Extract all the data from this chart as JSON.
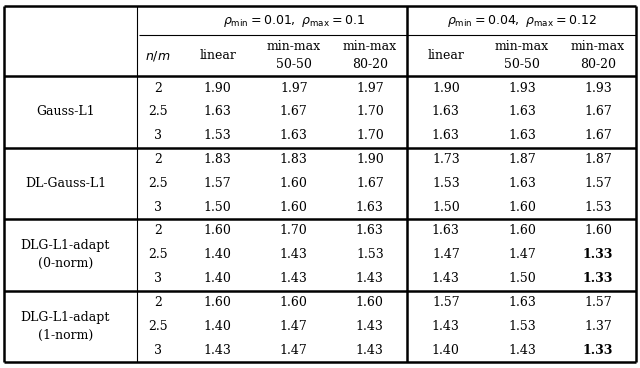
{
  "row_groups": [
    {
      "name": "Gauss-L1",
      "name2": "",
      "rows": [
        {
          "nm": "2",
          "v": [
            "1.90",
            "1.97",
            "1.97",
            "1.90",
            "1.93",
            "1.93"
          ],
          "bold": [
            false,
            false,
            false,
            false,
            false,
            false
          ]
        },
        {
          "nm": "2.5",
          "v": [
            "1.63",
            "1.67",
            "1.70",
            "1.63",
            "1.63",
            "1.67"
          ],
          "bold": [
            false,
            false,
            false,
            false,
            false,
            false
          ]
        },
        {
          "nm": "3",
          "v": [
            "1.53",
            "1.63",
            "1.70",
            "1.63",
            "1.63",
            "1.67"
          ],
          "bold": [
            false,
            false,
            false,
            false,
            false,
            false
          ]
        }
      ]
    },
    {
      "name": "DL-Gauss-L1",
      "name2": "",
      "rows": [
        {
          "nm": "2",
          "v": [
            "1.83",
            "1.83",
            "1.90",
            "1.73",
            "1.87",
            "1.87"
          ],
          "bold": [
            false,
            false,
            false,
            false,
            false,
            false
          ]
        },
        {
          "nm": "2.5",
          "v": [
            "1.57",
            "1.60",
            "1.67",
            "1.53",
            "1.63",
            "1.57"
          ],
          "bold": [
            false,
            false,
            false,
            false,
            false,
            false
          ]
        },
        {
          "nm": "3",
          "v": [
            "1.50",
            "1.60",
            "1.63",
            "1.50",
            "1.60",
            "1.53"
          ],
          "bold": [
            false,
            false,
            false,
            false,
            false,
            false
          ]
        }
      ]
    },
    {
      "name": "DLG-L1-adapt",
      "name2": "(0-norm)",
      "rows": [
        {
          "nm": "2",
          "v": [
            "1.60",
            "1.70",
            "1.63",
            "1.63",
            "1.60",
            "1.60"
          ],
          "bold": [
            false,
            false,
            false,
            false,
            false,
            false
          ]
        },
        {
          "nm": "2.5",
          "v": [
            "1.40",
            "1.43",
            "1.53",
            "1.47",
            "1.47",
            "1.33"
          ],
          "bold": [
            false,
            false,
            false,
            false,
            false,
            true
          ]
        },
        {
          "nm": "3",
          "v": [
            "1.40",
            "1.43",
            "1.43",
            "1.43",
            "1.50",
            "1.33"
          ],
          "bold": [
            false,
            false,
            false,
            false,
            false,
            true
          ]
        }
      ]
    },
    {
      "name": "DLG-L1-adapt",
      "name2": "(1-norm)",
      "rows": [
        {
          "nm": "2",
          "v": [
            "1.60",
            "1.60",
            "1.60",
            "1.57",
            "1.63",
            "1.57"
          ],
          "bold": [
            false,
            false,
            false,
            false,
            false,
            false
          ]
        },
        {
          "nm": "2.5",
          "v": [
            "1.40",
            "1.47",
            "1.43",
            "1.43",
            "1.53",
            "1.37"
          ],
          "bold": [
            false,
            false,
            false,
            false,
            false,
            false
          ]
        },
        {
          "nm": "3",
          "v": [
            "1.43",
            "1.47",
            "1.43",
            "1.40",
            "1.43",
            "1.33"
          ],
          "bold": [
            false,
            false,
            false,
            false,
            false,
            true
          ]
        }
      ]
    }
  ],
  "figsize": [
    6.4,
    3.68
  ],
  "dpi": 100,
  "fs": 9.0,
  "fs_hdr": 9.0,
  "lw_thick": 1.8,
  "lw_thin": 0.8
}
